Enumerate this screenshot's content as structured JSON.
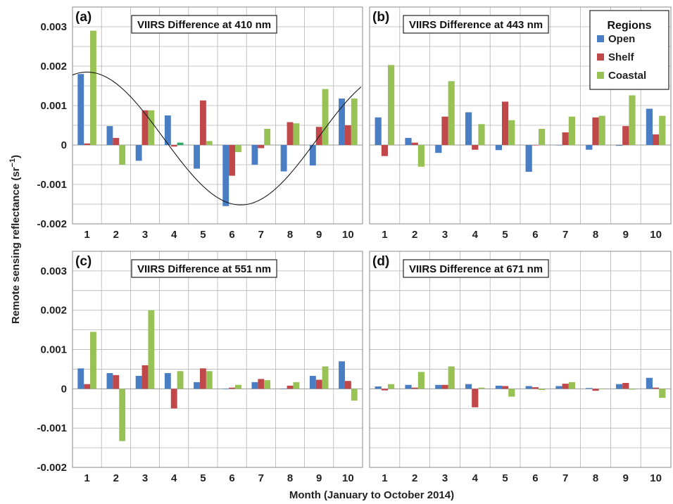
{
  "figure": {
    "ylabel": "Remote sensing reflectance (sr",
    "ylabel_sup": "−1",
    "ylabel_close": ")",
    "xlabel": "Month (January to October 2014)",
    "legend": {
      "title": "Regions",
      "placement": "top-right of panel (b)"
    },
    "series_colors": {
      "Open": "#4a7ec4",
      "Shelf": "#c0474a",
      "Coastal": "#98c156",
      "anomaly_month4_coastal": "#2aa864"
    }
  },
  "chart_data": [
    {
      "type": "bar",
      "panel_label": "(a)",
      "title": "VIIRS Difference at 410 nm",
      "categories": [
        "1",
        "2",
        "3",
        "4",
        "5",
        "6",
        "7",
        "8",
        "9",
        "10"
      ],
      "ylim": [
        -0.002,
        0.0035
      ],
      "yticks": [
        "0.003",
        "0.002",
        "0.001",
        "0",
        "-0.001",
        "-0.002"
      ],
      "grid": true,
      "series": [
        {
          "name": "Open",
          "values": [
            0.0018,
            0.00048,
            -0.0004,
            0.00075,
            -0.0006,
            -0.00155,
            -0.0005,
            -0.00067,
            -0.00052,
            0.00118
          ]
        },
        {
          "name": "Shelf",
          "values": [
            4e-05,
            0.00018,
            0.00088,
            -4e-05,
            0.00113,
            -0.00078,
            -8e-05,
            0.00058,
            0.00046,
            0.0005
          ]
        },
        {
          "name": "Coastal",
          "values": [
            0.0029,
            -0.0005,
            0.00088,
            6e-05,
            0.0001,
            -0.00018,
            0.00041,
            0.00055,
            0.00142,
            0.00118
          ]
        }
      ],
      "fit_curve": {
        "type": "sinusoid",
        "max_value": 0.00185,
        "max_month": 1,
        "min_value": -0.00152,
        "min_month": 6.3
      }
    },
    {
      "type": "bar",
      "panel_label": "(b)",
      "title": "VIIRS Difference at 443 nm",
      "categories": [
        "1",
        "2",
        "3",
        "4",
        "5",
        "6",
        "7",
        "8",
        "9",
        "10"
      ],
      "ylim": [
        -0.002,
        0.0035
      ],
      "grid": true,
      "series": [
        {
          "name": "Open",
          "values": [
            0.0007,
            0.00018,
            -0.0002,
            0.00083,
            -0.00013,
            -0.00068,
            0.0,
            -0.00012,
            -2e-05,
            0.00092
          ]
        },
        {
          "name": "Shelf",
          "values": [
            -0.00028,
            6e-05,
            0.00072,
            -0.00012,
            0.0011,
            0.0,
            0.00032,
            0.0007,
            0.00048,
            0.00027
          ]
        },
        {
          "name": "Coastal",
          "values": [
            0.00203,
            -0.00055,
            0.00162,
            0.00053,
            0.00063,
            0.00041,
            0.00072,
            0.00074,
            0.00126,
            0.00074
          ]
        }
      ]
    },
    {
      "type": "bar",
      "panel_label": "(c)",
      "title": "VIIRS Difference at 551 nm",
      "categories": [
        "1",
        "2",
        "3",
        "4",
        "5",
        "6",
        "7",
        "8",
        "9",
        "10"
      ],
      "ylim": [
        -0.002,
        0.0035
      ],
      "yticks": [
        "0.003",
        "0.002",
        "0.001",
        "0",
        "-0.001",
        "-0.002"
      ],
      "grid": true,
      "series": [
        {
          "name": "Open",
          "values": [
            0.00052,
            0.0004,
            0.00033,
            0.0004,
            0.00017,
            0.0,
            0.00017,
            0.0,
            0.00033,
            0.0007
          ]
        },
        {
          "name": "Shelf",
          "values": [
            0.00012,
            0.00035,
            0.0006,
            -0.0005,
            0.00052,
            3e-05,
            0.00025,
            8e-05,
            0.00023,
            0.0002
          ]
        },
        {
          "name": "Coastal",
          "values": [
            0.00145,
            -0.00133,
            0.002,
            0.00045,
            0.00045,
            0.0001,
            0.00022,
            0.00017,
            0.00057,
            -0.0003
          ]
        }
      ]
    },
    {
      "type": "bar",
      "panel_label": "(d)",
      "title": "VIIRS Difference at 671 nm",
      "categories": [
        "1",
        "2",
        "3",
        "4",
        "5",
        "6",
        "7",
        "8",
        "9",
        "10"
      ],
      "ylim": [
        -0.002,
        0.0035
      ],
      "grid": true,
      "series": [
        {
          "name": "Open",
          "values": [
            6e-05,
            0.0001,
            0.0001,
            0.00012,
            8e-05,
            7e-05,
            7e-05,
            2e-05,
            0.00012,
            0.00028
          ]
        },
        {
          "name": "Shelf",
          "values": [
            -4e-05,
            3e-05,
            0.0001,
            -0.00047,
            7e-05,
            4e-05,
            0.00013,
            -5e-05,
            0.00015,
            3e-05
          ]
        },
        {
          "name": "Coastal",
          "values": [
            0.00012,
            0.00043,
            0.00057,
            3e-05,
            -0.0002,
            -3e-05,
            0.00017,
            0.0,
            -2e-05,
            -0.00023
          ]
        }
      ]
    }
  ]
}
